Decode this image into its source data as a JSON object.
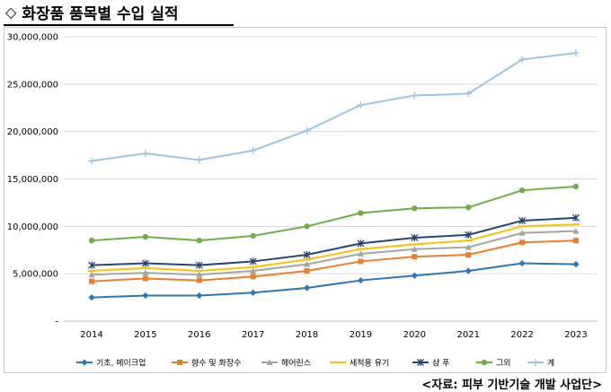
{
  "header": {
    "title": "화장품 품목별 수입 실적",
    "title_icon": "diamond-outline-icon",
    "source": "<자료: 피부 기반기술 개발 사업단>"
  },
  "chart_data": {
    "type": "line",
    "title": "",
    "xlabel": "",
    "ylabel": "",
    "x": [
      "2014",
      "2015",
      "2016",
      "2017",
      "2018",
      "2019",
      "2020",
      "2021",
      "2022",
      "2023"
    ],
    "ylim": [
      0,
      30000000
    ],
    "yticks": [
      0,
      5000000,
      10000000,
      15000000,
      20000000,
      25000000,
      30000000
    ],
    "ytick_labels": [
      "-",
      "5,000,000",
      "10,000,000",
      "15,000,000",
      "20,000,000",
      "25,000,000",
      "30,000,000"
    ],
    "grid": true,
    "legend_position": "bottom",
    "series": [
      {
        "name": "기초, 메이크업",
        "color": "#2e75b6",
        "marker": "diamond",
        "values": [
          2500000,
          2700000,
          2700000,
          3000000,
          3500000,
          4300000,
          4800000,
          5300000,
          6100000,
          6000000
        ]
      },
      {
        "name": "향수 및 화장수",
        "color": "#ed7d31",
        "marker": "square",
        "values": [
          4200000,
          4500000,
          4300000,
          4700000,
          5300000,
          6300000,
          6800000,
          7000000,
          8300000,
          8500000
        ]
      },
      {
        "name": "헤어린스",
        "color": "#a5a5a5",
        "marker": "triangle",
        "values": [
          4900000,
          5100000,
          4900000,
          5300000,
          6000000,
          7100000,
          7600000,
          7800000,
          9300000,
          9500000
        ]
      },
      {
        "name": "세척용 유기",
        "color": "#ffc000",
        "marker": "dash",
        "values": [
          5300000,
          5600000,
          5300000,
          5700000,
          6500000,
          7600000,
          8100000,
          8500000,
          10000000,
          10200000
        ]
      },
      {
        "name": "샴 푸",
        "color": "#264478",
        "marker": "star",
        "values": [
          5900000,
          6100000,
          5900000,
          6300000,
          7000000,
          8200000,
          8800000,
          9100000,
          10600000,
          10900000
        ]
      },
      {
        "name": "그외",
        "color": "#70ad47",
        "marker": "circle",
        "values": [
          8500000,
          8900000,
          8500000,
          9000000,
          10000000,
          11400000,
          11900000,
          12000000,
          13800000,
          14200000
        ]
      },
      {
        "name": "계",
        "color": "#9dc3e6",
        "marker": "plus",
        "values": [
          16900000,
          17700000,
          17000000,
          18000000,
          20100000,
          22800000,
          23800000,
          24000000,
          27600000,
          28300000
        ]
      }
    ]
  }
}
